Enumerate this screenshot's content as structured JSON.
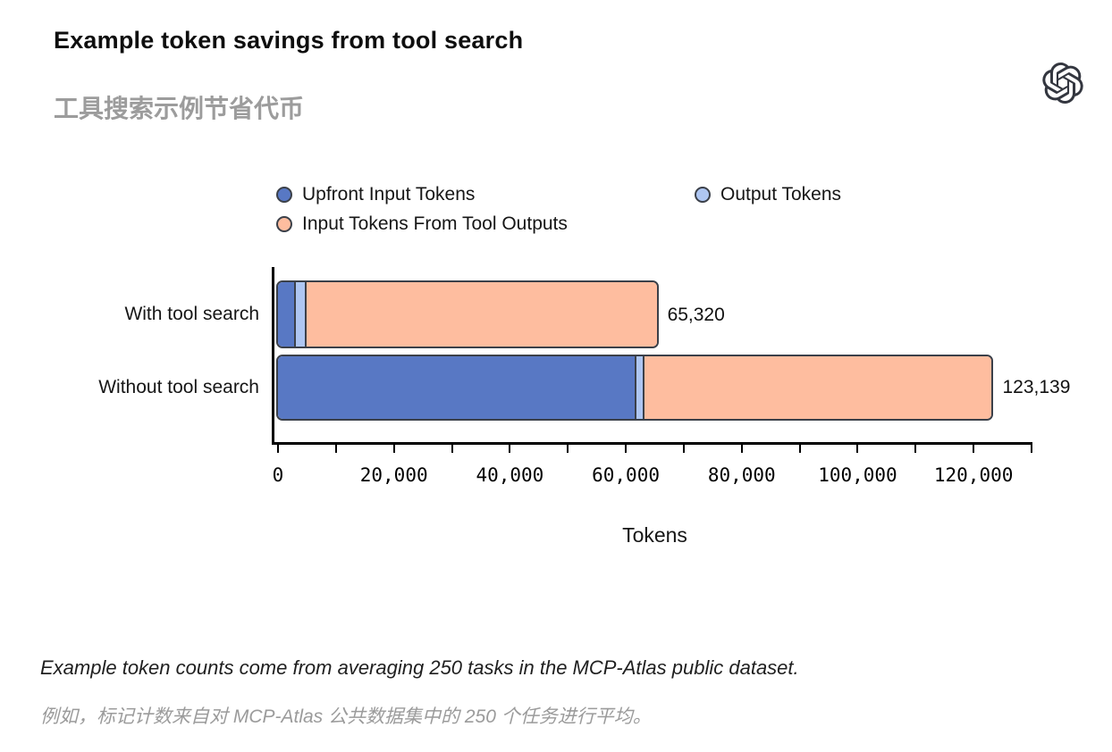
{
  "page": {
    "title": "Example token savings from tool search",
    "subtitle_zh": "工具搜索示例节省代币",
    "footnote_en": "Example token counts come from averaging 250 tasks in the MCP-Atlas public dataset.",
    "footnote_zh": "例如，标记计数来自对 MCP-Atlas 公共数据集中的 250 个任务进行平均。",
    "logo_name": "openai-logo"
  },
  "colors": {
    "upfront": "#5878C4",
    "output": "#AEC6F2",
    "tool_outputs": "#FEBD9F",
    "outline": "#3B4049",
    "axis": "#000000",
    "subtitle_gray": "#9C9C9C"
  },
  "chart_data": {
    "type": "bar",
    "orientation": "horizontal",
    "stacked": true,
    "title": "Example token savings from tool search",
    "xlabel": "Tokens",
    "categories": [
      "With tool search",
      "Without tool search"
    ],
    "series": [
      {
        "name": "Upfront Input Tokens",
        "color_key": "upfront",
        "values": [
          2700,
          61500
        ]
      },
      {
        "name": "Output Tokens",
        "color_key": "output",
        "values": [
          2300,
          1700
        ]
      },
      {
        "name": "Input Tokens From Tool Outputs",
        "color_key": "tool_outputs",
        "values": [
          60320,
          59939
        ]
      }
    ],
    "totals": [
      65320,
      123139
    ],
    "total_labels": [
      "65,320",
      "123,139"
    ],
    "x_max": 130000,
    "minor_tick_step": 10000,
    "tick_labels": [
      {
        "v": 0,
        "label": "0"
      },
      {
        "v": 20000,
        "label": "20,000"
      },
      {
        "v": 40000,
        "label": "40,000"
      },
      {
        "v": 60000,
        "label": "60,000"
      },
      {
        "v": 80000,
        "label": "80,000"
      },
      {
        "v": 100000,
        "label": "100,000"
      },
      {
        "v": 120000,
        "label": "120,000"
      }
    ],
    "legend_position": "top",
    "grid": false
  }
}
